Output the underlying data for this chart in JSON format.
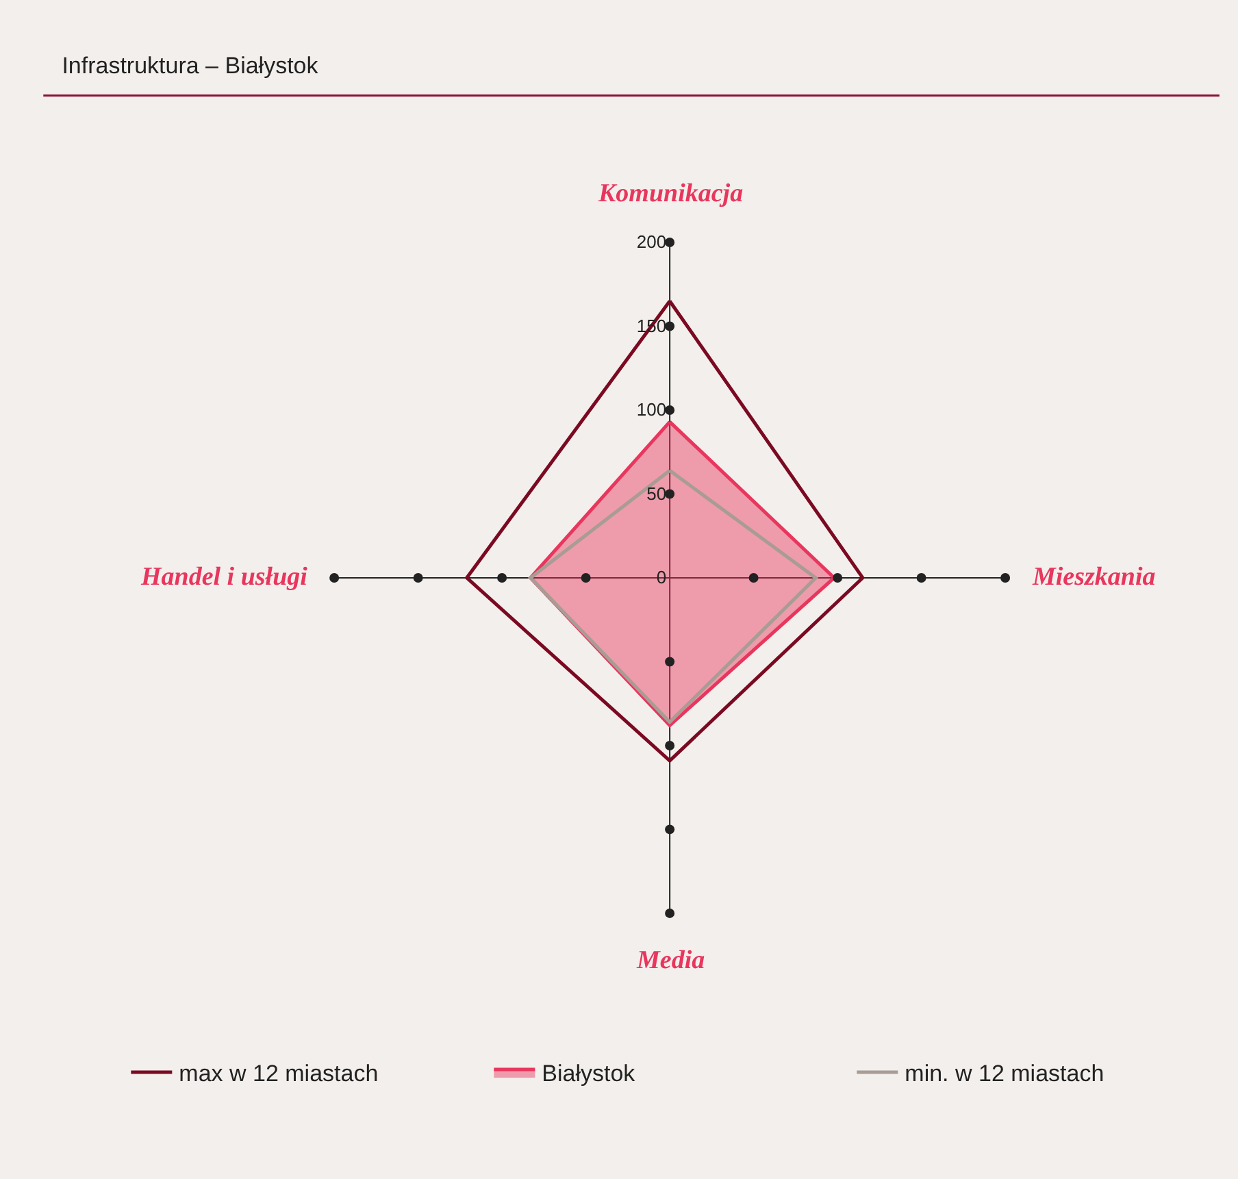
{
  "chart_data": {
    "type": "radar",
    "title": "Infrastruktura – Białystok",
    "categories": [
      "Komunikacja",
      "Mieszkania",
      "Media",
      "Handel i usługi"
    ],
    "series": [
      {
        "name": "max w 12 miastach",
        "color": "#7a0a22",
        "values": [
          165,
          115,
          109,
          121
        ]
      },
      {
        "name": "Białystok",
        "color": "#e8365d",
        "values": [
          93,
          98,
          88,
          83
        ],
        "type": "area"
      },
      {
        "name": "min. w 12 miastach",
        "color": "#a89c94",
        "values": [
          64,
          87,
          86,
          83
        ]
      }
    ],
    "ylim": [
      0,
      200
    ],
    "yticks": [
      0,
      50,
      100,
      150,
      200
    ],
    "grid": "x",
    "legend": "bottom",
    "marker": "none"
  }
}
